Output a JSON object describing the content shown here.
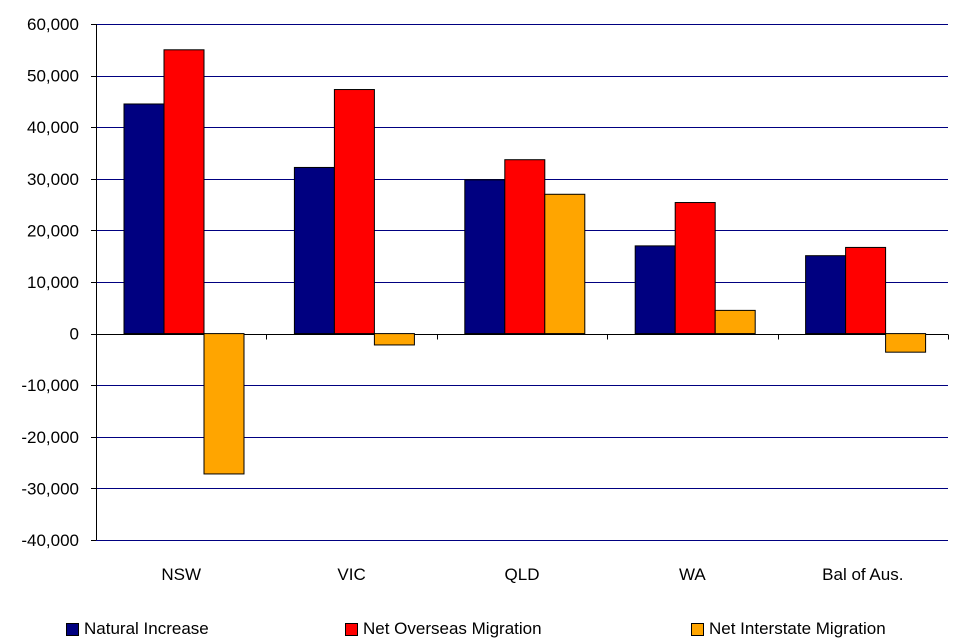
{
  "chart_data": {
    "type": "bar",
    "categories": [
      "NSW",
      "VIC",
      "QLD",
      "WA",
      "Bal of Aus."
    ],
    "series": [
      {
        "name": "Natural Increase",
        "color": "#000080",
        "values": [
          44500,
          32200,
          29800,
          17000,
          15100
        ]
      },
      {
        "name": "Net Overseas Migration",
        "color": "#ff0000",
        "values": [
          55000,
          47300,
          33700,
          25400,
          16700
        ]
      },
      {
        "name": "Net Interstate Migration",
        "color": "#ffa500",
        "values": [
          -27200,
          -2200,
          27000,
          4500,
          -3600
        ]
      }
    ],
    "yticks": [
      "60,000",
      "50,000",
      "40,000",
      "30,000",
      "20,000",
      "10,000",
      "0",
      "-10,000",
      "-20,000",
      "-30,000",
      "-40,000"
    ],
    "ylim": [
      -40000,
      60000
    ],
    "ytick_step": 10000,
    "grid": true,
    "legend_position": "bottom",
    "title": "",
    "xlabel": "",
    "ylabel": ""
  }
}
